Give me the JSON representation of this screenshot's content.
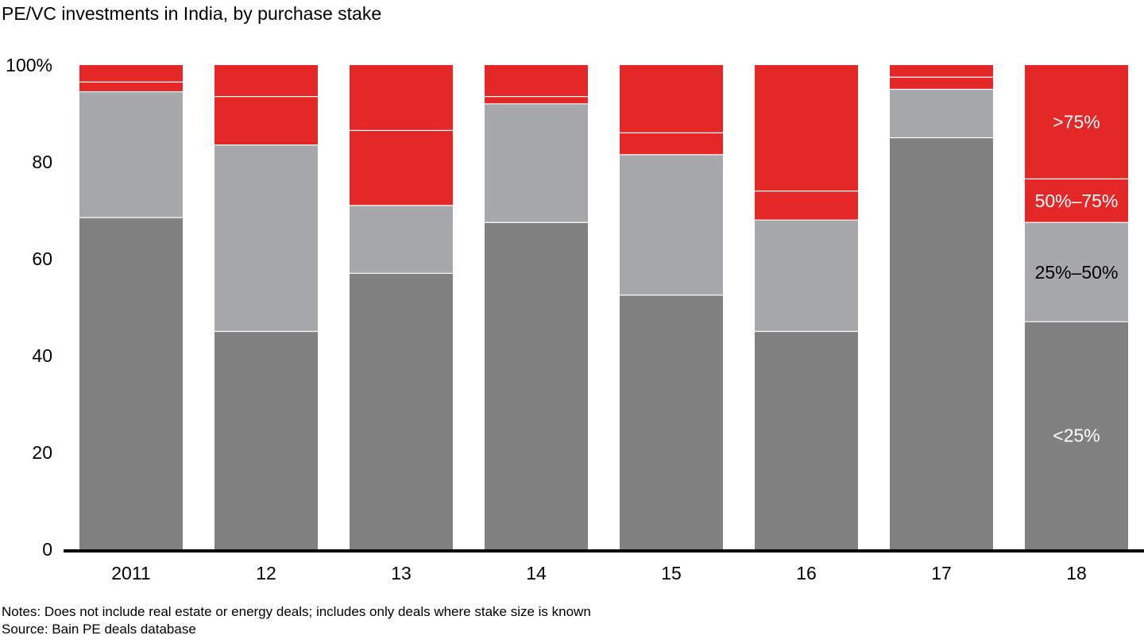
{
  "title": "PE/VC investments in India, by purchase stake",
  "notes": {
    "note": "Notes: Does not include real estate or energy deals; includes only deals where stake size is known",
    "source": "Source: Bain PE deals database"
  },
  "chart_data": {
    "type": "bar",
    "stacked": true,
    "categories": [
      "2011",
      "12",
      "13",
      "14",
      "15",
      "16",
      "17",
      "18"
    ],
    "series": [
      {
        "name": "<25%",
        "color": "#808080",
        "label_color": "#ffffff",
        "values": [
          68.5,
          45.0,
          57.0,
          67.5,
          52.5,
          45.0,
          85.0,
          47.0
        ]
      },
      {
        "name": "25%–50%",
        "color": "#a7a8ab",
        "label_color": "#000000",
        "values": [
          26.0,
          38.5,
          14.0,
          24.5,
          29.0,
          23.0,
          10.0,
          20.5
        ]
      },
      {
        "name": "50%–75%",
        "color": "#e42727",
        "label_color": "#ffffff",
        "values": [
          2.0,
          10.0,
          15.5,
          1.5,
          4.5,
          6.0,
          2.5,
          9.0
        ]
      },
      {
        "name": ">75%",
        "color": "#e42727",
        "label_color": "#ffffff",
        "values": [
          3.5,
          6.5,
          13.5,
          6.5,
          14.0,
          26.0,
          2.5,
          23.5
        ]
      }
    ],
    "ylim": [
      0,
      100
    ],
    "yticks": [
      {
        "value": 0,
        "label": "0"
      },
      {
        "value": 20,
        "label": "20"
      },
      {
        "value": 40,
        "label": "40"
      },
      {
        "value": 60,
        "label": "60"
      },
      {
        "value": 80,
        "label": "80"
      },
      {
        "value": 100,
        "label": "100%"
      }
    ],
    "segment_labels_on_last_bar": true,
    "grid": false,
    "legend": "none"
  }
}
